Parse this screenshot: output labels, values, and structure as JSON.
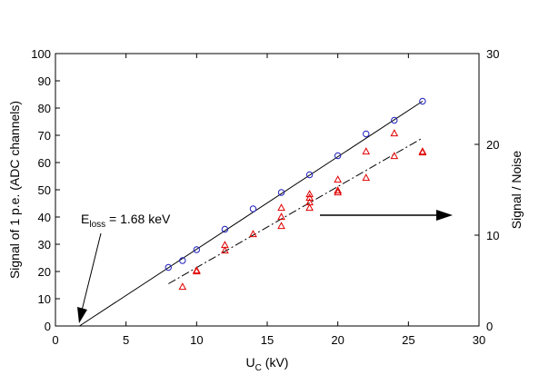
{
  "chart_data": {
    "type": "scatter",
    "xlabel": {
      "main": "U",
      "sub": "C",
      "rest": " (kV)"
    },
    "ylabel": "Signal  of 1 p.e. (ADC channels)",
    "y2label": "Signal / Noise",
    "xlim": [
      0,
      30
    ],
    "ylim": [
      0,
      100
    ],
    "y2lim": [
      0,
      30
    ],
    "xticks": [
      0,
      5,
      10,
      15,
      20,
      25,
      30
    ],
    "yticks": [
      0,
      10,
      20,
      30,
      40,
      50,
      60,
      70,
      80,
      90,
      100
    ],
    "y2ticks": [
      0,
      10,
      20,
      30
    ],
    "grid": false,
    "series": [
      {
        "marker": "circle",
        "color": "#1f1fbf",
        "axis": "left",
        "x": [
          8,
          9,
          10,
          12,
          14,
          16,
          18,
          20,
          22,
          24,
          26
        ],
        "y": [
          21.5,
          24,
          28,
          35.5,
          43,
          49,
          55.5,
          62.5,
          70.5,
          75.5,
          82.5
        ]
      },
      {
        "marker": "triangle",
        "color": "#e00000",
        "axis": "right",
        "x": [
          9,
          10,
          10,
          12,
          12,
          14,
          16,
          16,
          16,
          18,
          18,
          18,
          18,
          20,
          20,
          20,
          22,
          22,
          24,
          24,
          26,
          26
        ],
        "y": [
          4.3,
          6.0,
          6.1,
          8.3,
          8.9,
          10.1,
          11.0,
          12.0,
          13.0,
          13.0,
          13.6,
          14.1,
          14.5,
          14.7,
          14.9,
          16.1,
          16.3,
          19.2,
          18.7,
          21.2,
          19.1,
          19.2
        ]
      }
    ],
    "fit_lines": [
      {
        "axis": "left",
        "style": "solid",
        "x": [
          1.7,
          26
        ],
        "y": [
          0,
          82.5
        ]
      },
      {
        "axis": "left",
        "style": "dashed",
        "x": [
          8,
          26
        ],
        "y": [
          15.5,
          69
        ]
      }
    ],
    "annotations": {
      "eloss": {
        "main": "E",
        "sub": "loss",
        "rest": " = 1.68 keV"
      }
    }
  }
}
